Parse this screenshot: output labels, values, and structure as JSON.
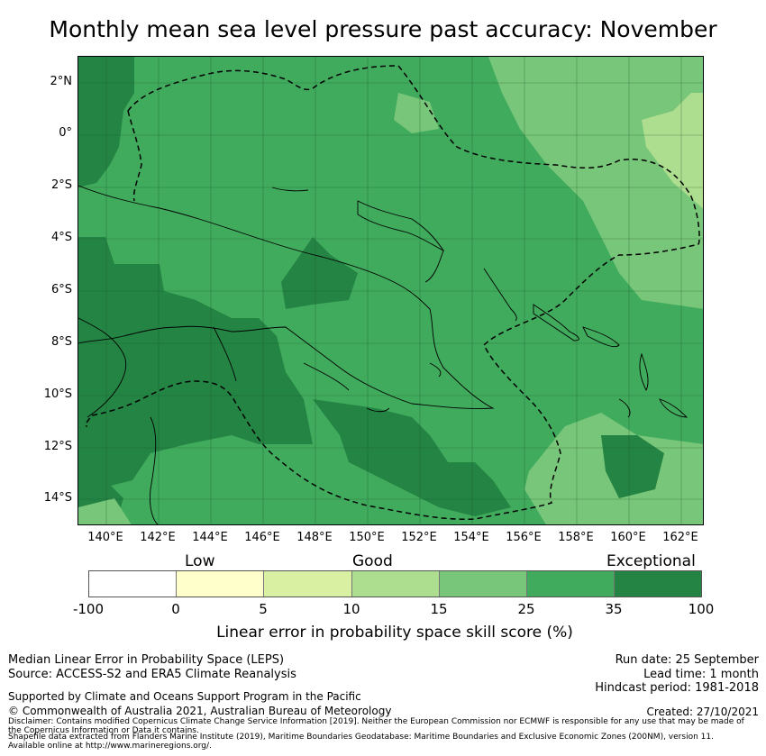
{
  "title": "Monthly mean sea level pressure past accuracy: November",
  "map": {
    "y_axis_labels": [
      "2°N",
      "0°",
      "2°S",
      "4°S",
      "6°S",
      "8°S",
      "10°S",
      "12°S",
      "14°S"
    ],
    "x_axis_labels": [
      "140°E",
      "142°E",
      "144°E",
      "146°E",
      "148°E",
      "150°E",
      "152°E",
      "154°E",
      "156°E",
      "158°E",
      "160°E",
      "162°E"
    ],
    "colors": {
      "exceptional_35_100": "#238443",
      "25_35": "#41ab5d",
      "15_25": "#78c679",
      "10_15": "#addd8e",
      "5_10": "#d9f0a3",
      "0_5": "#ffffcc",
      "below_0": "#ffffff"
    }
  },
  "colorbar": {
    "categories": [
      "Low",
      "Good",
      "Exceptional"
    ],
    "ticks": [
      "-100",
      "0",
      "5",
      "10",
      "15",
      "25",
      "35",
      "100"
    ],
    "colors": [
      "#ffffff",
      "#ffffcc",
      "#d9f0a3",
      "#addd8e",
      "#78c679",
      "#41ab5d",
      "#238443"
    ],
    "label": "Linear error in probability space skill score (%)"
  },
  "footer": {
    "method": "Median Linear Error in Probability Space (LEPS)",
    "source": "Source: ACCESS-S2 and ERA5 Climate Reanalysis",
    "run_date": "Run date: 25 September",
    "lead_time": "Lead time: 1 month",
    "hindcast": "Hindcast period: 1981-2018",
    "supported": "Supported by Climate and Oceans Support Program in the Pacific",
    "copyright": "© Commonwealth of Australia 2021, Australian Bureau of Meteorology",
    "created": "Created: 27/10/2021",
    "disclaimer_1": "Disclaimer: Contains modified Copernicus Climate Change Service Information [2019]. Neither the European Commission nor ECMWF is responsible for any use that may be made of",
    "disclaimer_2": "the Copernicus Information or Data it contains.",
    "shapefile_1": "Shapefile data extracted from Flanders Marine Institute (2019), Maritime Boundaries Geodatabase: Maritime Boundaries and Exclusive Economic Zones (200NM), version 11.",
    "shapefile_2": "Available online at http://www.marineregions.org/."
  }
}
